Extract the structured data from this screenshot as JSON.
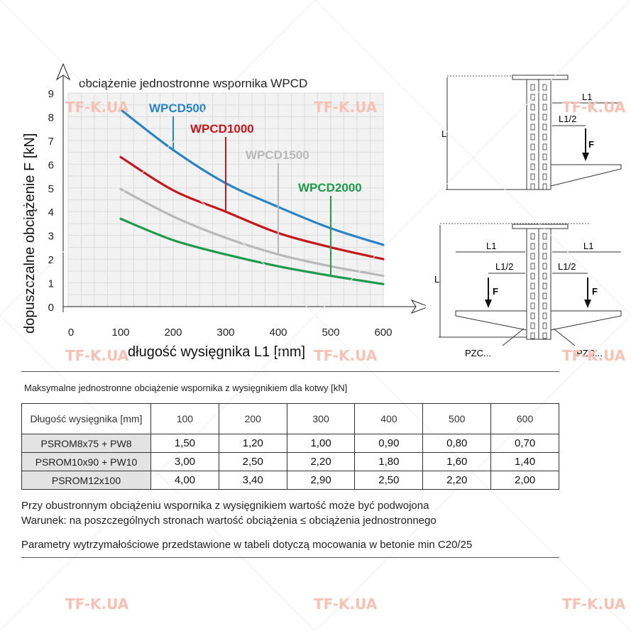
{
  "chart_data": {
    "type": "line",
    "title": "obciążenie jednostronne wspornika WPCD",
    "xlabel": "długość wysięgnika L1 [mm]",
    "ylabel": "dopuszczalne obciążenie F [kN]",
    "xlim": [
      0,
      600
    ],
    "ylim": [
      0,
      9
    ],
    "x_ticks": [
      "0",
      "100",
      "200",
      "300",
      "400",
      "500",
      "600"
    ],
    "y_ticks": [
      "0",
      "1",
      "2",
      "3",
      "4",
      "5",
      "6",
      "7",
      "8",
      "9"
    ],
    "grid": true,
    "x": [
      100,
      200,
      300,
      400,
      500,
      600
    ],
    "series": [
      {
        "name": "WPCD500",
        "color": "#2a83c3",
        "values": [
          8.3,
          6.6,
          5.2,
          4.2,
          3.3,
          2.6
        ],
        "label_at": 200
      },
      {
        "name": "WPCD1000",
        "color": "#c4171e",
        "values": [
          6.3,
          4.9,
          4.0,
          3.1,
          2.5,
          2.0
        ],
        "label_at": 300
      },
      {
        "name": "WPCD1500",
        "color": "#b8b8b8",
        "values": [
          4.95,
          3.8,
          2.9,
          2.2,
          1.7,
          1.3
        ],
        "label_at": 400
      },
      {
        "name": "WPCD2000",
        "color": "#1f9a4a",
        "values": [
          3.7,
          2.8,
          2.2,
          1.7,
          1.3,
          0.95
        ],
        "label_at": 500
      }
    ]
  },
  "diagrams": {
    "single": {
      "L": "L",
      "L1": "L1",
      "L1_half": "L1/2",
      "F": "F"
    },
    "double": {
      "L": "L",
      "L1_left": "L1",
      "L1_right": "L1",
      "L1_half_left": "L1/2",
      "L1_half_right": "L1/2",
      "F_left": "F",
      "F_right": "F",
      "pzc_left": "PZC...",
      "pzc_right": "PZC..."
    }
  },
  "watermark": "TF-K.UA",
  "table": {
    "title": "Maksymalne jednostronne obciążenie wspornika z wysięgnikiem dla kotwy [kN]",
    "header_label": "Długość wysięgnika [mm]",
    "columns": [
      "100",
      "200",
      "300",
      "400",
      "500",
      "600"
    ],
    "rows": [
      {
        "name": "PSROM8x75 + PW8",
        "values": [
          "1,50",
          "1,20",
          "1,00",
          "0,90",
          "0,80",
          "0,70"
        ]
      },
      {
        "name": "PSROM10x90 + PW10",
        "values": [
          "3,00",
          "2,50",
          "2,20",
          "1,80",
          "1,60",
          "1,40"
        ]
      },
      {
        "name": "PSROM12x100",
        "values": [
          "4,00",
          "3,40",
          "2,90",
          "2,50",
          "2,20",
          "2,00"
        ]
      }
    ]
  },
  "notes": {
    "line1": "Przy obustronnym obciążeniu wspornika z wysięgnikiem wartość może być podwojona",
    "line2": "Warunek: na poszczególnych stronach wartość obciążenia ≤ obciążenia jednostronnego",
    "line3": "Parametry wytrzymałościowe przedstawione w tabeli dotyczą mocowania w betonie min C20/25"
  }
}
